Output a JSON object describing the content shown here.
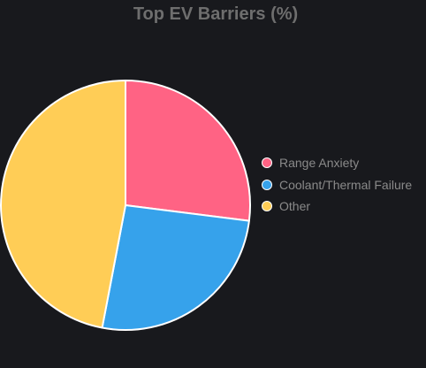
{
  "chart_data": {
    "type": "pie",
    "title": "Top EV Barriers (%)",
    "categories": [
      "Range Anxiety",
      "Coolant/Thermal Failure",
      "Other"
    ],
    "values": [
      27,
      26,
      47
    ],
    "colors": [
      "#ff6384",
      "#36a2eb",
      "#ffcd56"
    ],
    "border_color": "#ffffff",
    "legend_position": "right"
  }
}
